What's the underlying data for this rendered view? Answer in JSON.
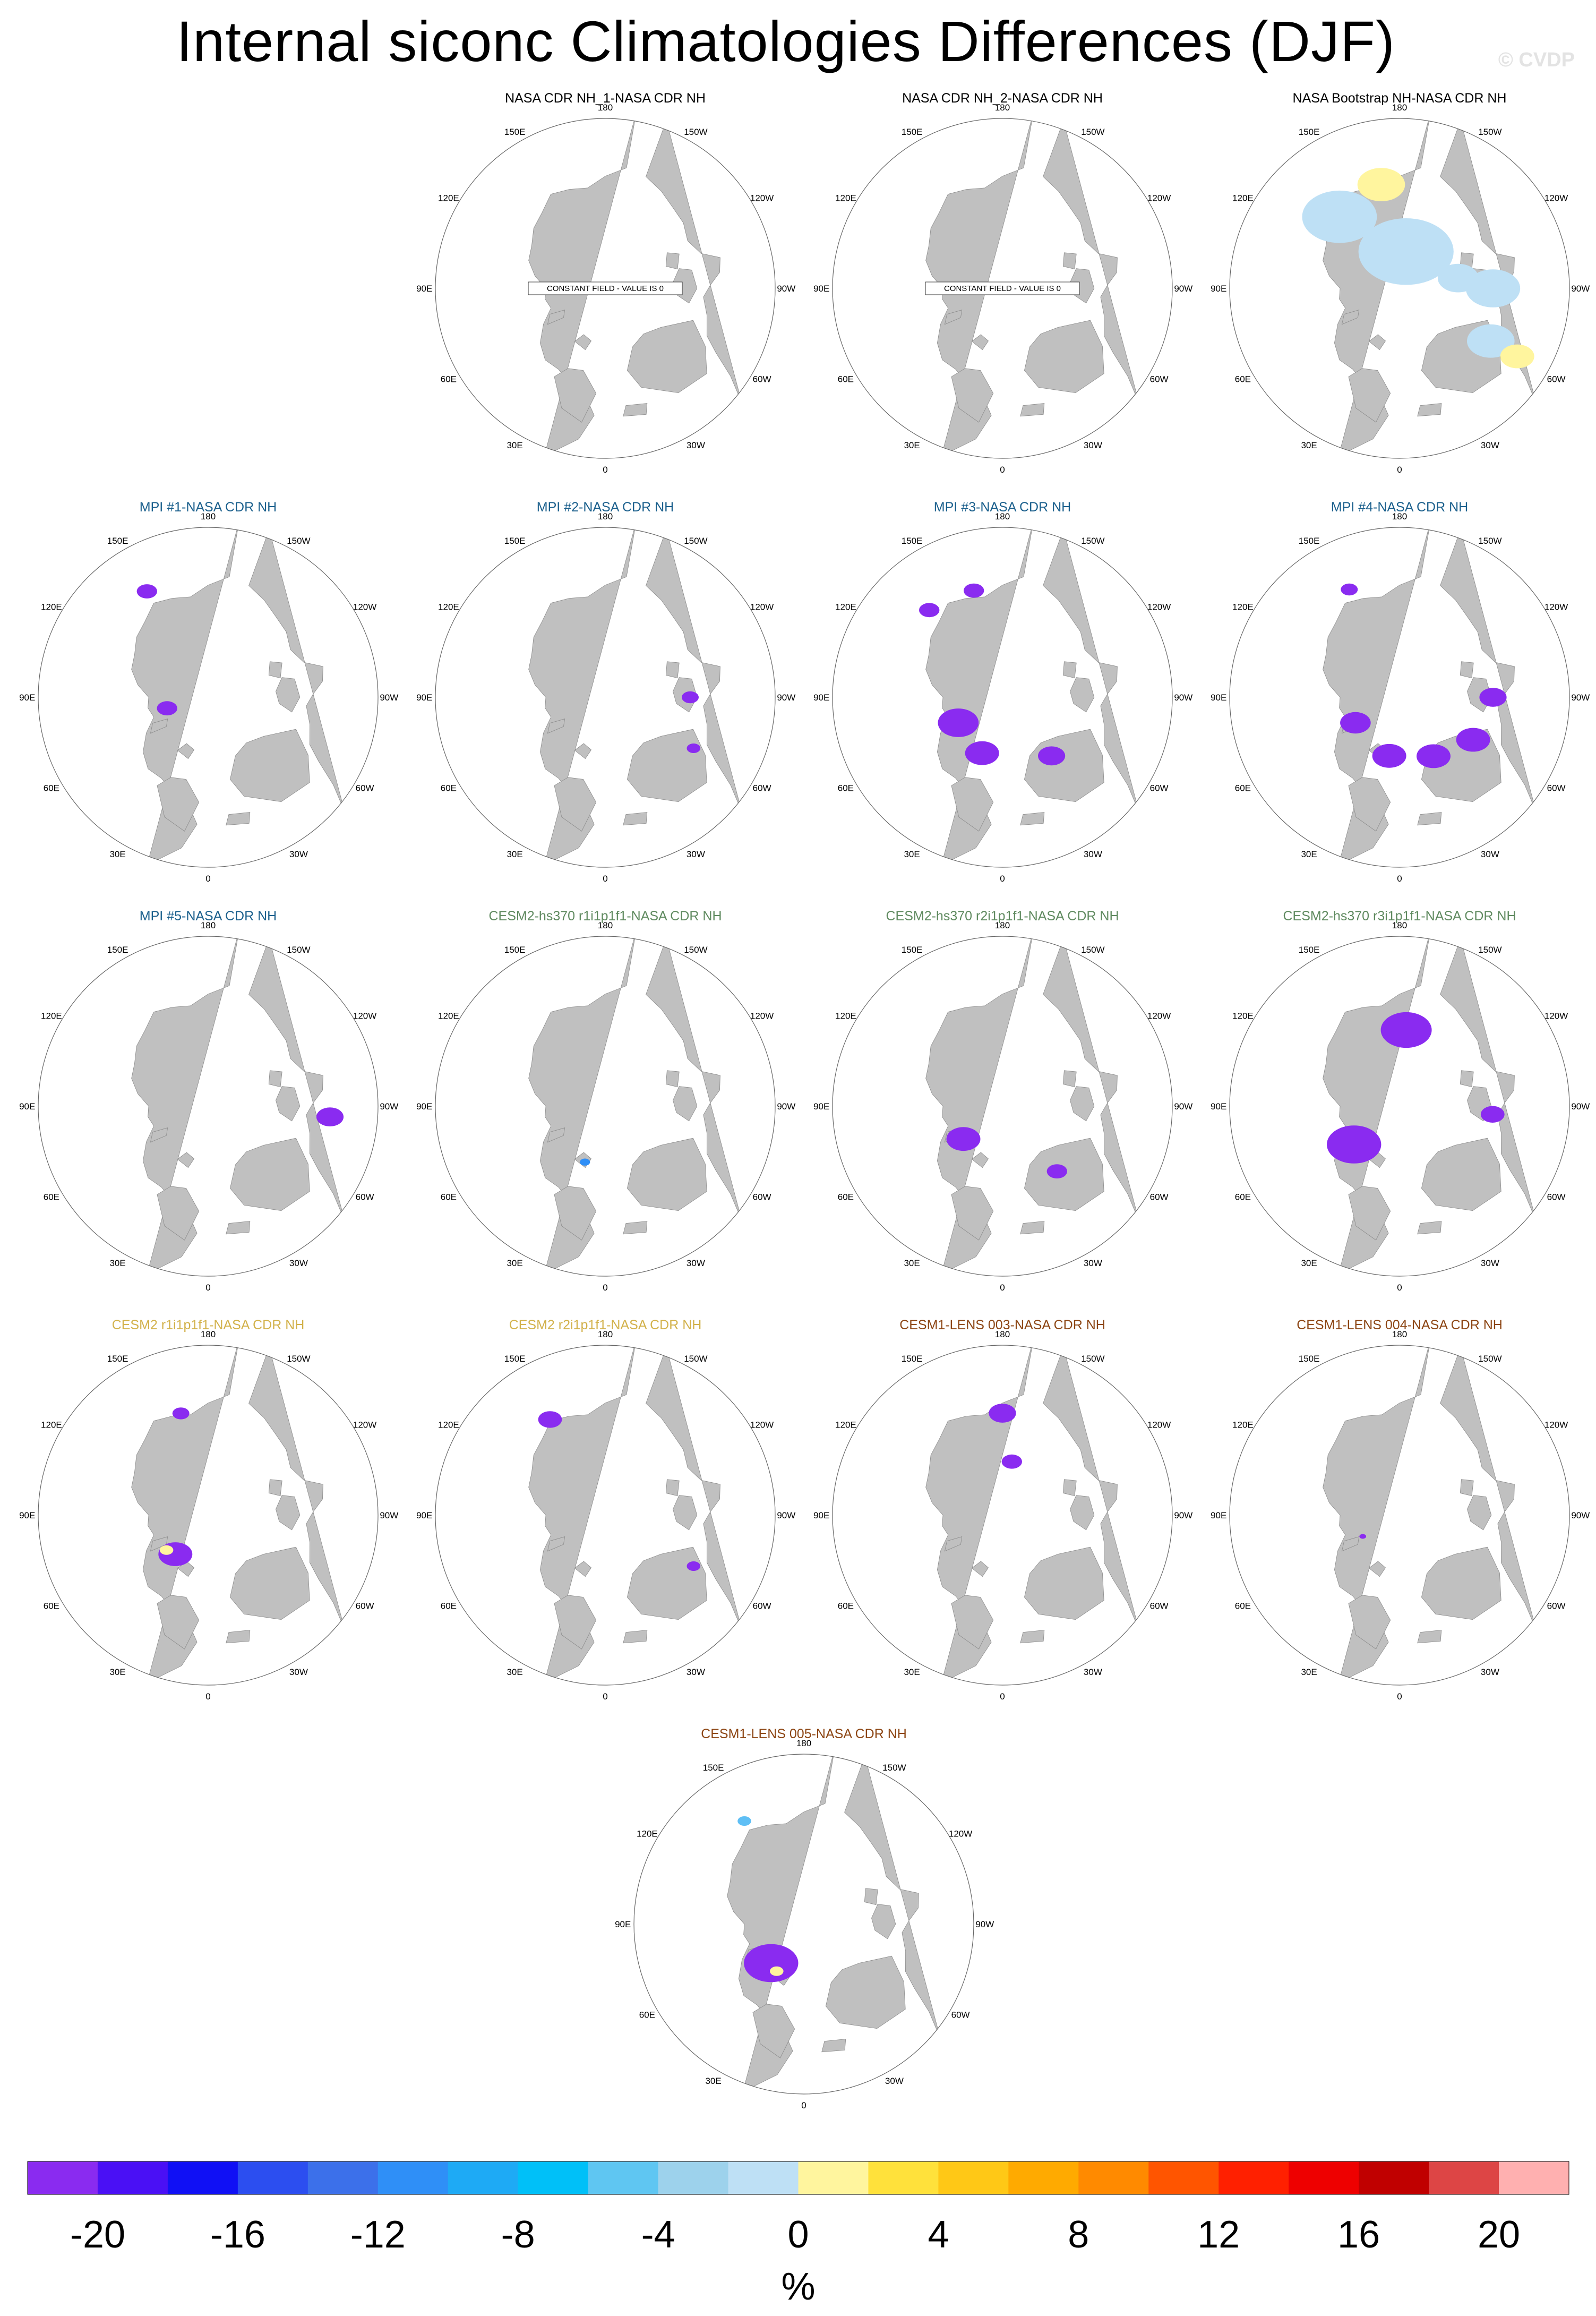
{
  "page": {
    "title": "Internal siconc Climatologies Differences (DJF)",
    "watermark": "© CVDP"
  },
  "colors": {
    "land": "#c0c0c0",
    "ocean": "#ffffff",
    "yellow_small": "#fff59e",
    "light_blue_small": "#bee0f5",
    "strong_negative": "#8a2bf0"
  },
  "lon_labels": [
    "180",
    "150E",
    "120E",
    "90E",
    "60E",
    "30E",
    "0",
    "30W",
    "60W",
    "90W",
    "120W",
    "150W"
  ],
  "panels": [
    {
      "title": "NASA CDR NH_1-NASA CDR NH",
      "title_color": "#000000",
      "constant_field": "CONSTANT FIELD - VALUE IS 0",
      "anomalies": []
    },
    {
      "title": "NASA CDR NH_2-NASA CDR NH",
      "title_color": "#000000",
      "constant_field": "CONSTANT FIELD - VALUE IS 0",
      "anomalies": []
    },
    {
      "title": "NASA Bootstrap NH-NASA CDR NH",
      "title_color": "#000000",
      "constant_field": "",
      "anomalies": [
        {
          "kind": "blob",
          "lon": 190,
          "dist": 0.22,
          "r": 0.28,
          "color": "#bee0f5"
        },
        {
          "kind": "blob",
          "lon": 140,
          "dist": 0.55,
          "r": 0.22,
          "color": "#bee0f5"
        },
        {
          "kind": "blob",
          "lon": 270,
          "dist": 0.55,
          "r": 0.16,
          "color": "#bee0f5"
        },
        {
          "kind": "blob",
          "lon": 300,
          "dist": 0.62,
          "r": 0.14,
          "color": "#bee0f5"
        },
        {
          "kind": "blob",
          "lon": 170,
          "dist": 0.62,
          "r": 0.14,
          "color": "#fff59e"
        },
        {
          "kind": "blob",
          "lon": 300,
          "dist": 0.8,
          "r": 0.1,
          "color": "#fff59e"
        },
        {
          "kind": "blob",
          "lon": 260,
          "dist": 0.35,
          "r": 0.12,
          "color": "#bee0f5"
        }
      ]
    },
    {
      "title": "MPI #1-NASA CDR NH",
      "title_color": "#1a5f8c",
      "constant_field": "",
      "anomalies": [
        {
          "kind": "blob",
          "lon": 150,
          "dist": 0.72,
          "r": 0.06,
          "color": "#8a2bf0"
        },
        {
          "kind": "blob",
          "lon": 75,
          "dist": 0.25,
          "r": 0.06,
          "color": "#8a2bf0"
        }
      ]
    },
    {
      "title": "MPI #2-NASA CDR NH",
      "title_color": "#1a5f8c",
      "constant_field": "",
      "anomalies": [
        {
          "kind": "blob",
          "lon": 270,
          "dist": 0.5,
          "r": 0.05,
          "color": "#8a2bf0"
        },
        {
          "kind": "blob",
          "lon": 300,
          "dist": 0.6,
          "r": 0.04,
          "color": "#8a2bf0"
        }
      ]
    },
    {
      "title": "MPI #3-NASA CDR NH",
      "title_color": "#1a5f8c",
      "constant_field": "",
      "anomalies": [
        {
          "kind": "blob",
          "lon": 165,
          "dist": 0.65,
          "r": 0.06,
          "color": "#8a2bf0"
        },
        {
          "kind": "blob",
          "lon": 140,
          "dist": 0.67,
          "r": 0.06,
          "color": "#8a2bf0"
        },
        {
          "kind": "blob",
          "lon": 60,
          "dist": 0.3,
          "r": 0.12,
          "color": "#8a2bf0"
        },
        {
          "kind": "blob",
          "lon": 20,
          "dist": 0.35,
          "r": 0.1,
          "color": "#8a2bf0"
        },
        {
          "kind": "blob",
          "lon": 320,
          "dist": 0.45,
          "r": 0.08,
          "color": "#8a2bf0"
        }
      ]
    },
    {
      "title": "MPI #4-NASA CDR NH",
      "title_color": "#1a5f8c",
      "constant_field": "",
      "anomalies": [
        {
          "kind": "blob",
          "lon": 155,
          "dist": 0.7,
          "r": 0.05,
          "color": "#8a2bf0"
        },
        {
          "kind": "blob",
          "lon": 60,
          "dist": 0.3,
          "r": 0.09,
          "color": "#8a2bf0"
        },
        {
          "kind": "blob",
          "lon": 10,
          "dist": 0.35,
          "r": 0.1,
          "color": "#8a2bf0"
        },
        {
          "kind": "blob",
          "lon": 330,
          "dist": 0.4,
          "r": 0.1,
          "color": "#8a2bf0"
        },
        {
          "kind": "blob",
          "lon": 300,
          "dist": 0.5,
          "r": 0.1,
          "color": "#8a2bf0"
        },
        {
          "kind": "blob",
          "lon": 270,
          "dist": 0.55,
          "r": 0.08,
          "color": "#8a2bf0"
        }
      ]
    },
    {
      "title": "MPI #5-NASA CDR NH",
      "title_color": "#1a5f8c",
      "constant_field": "",
      "anomalies": [
        {
          "kind": "blob",
          "lon": 275,
          "dist": 0.72,
          "r": 0.08,
          "color": "#8a2bf0"
        }
      ]
    },
    {
      "title": "CESM2-hs370 r1i1p1f1-NASA CDR NH",
      "title_color": "#5f8a5f",
      "constant_field": "",
      "anomalies": [
        {
          "kind": "blob",
          "lon": 20,
          "dist": 0.35,
          "r": 0.03,
          "color": "#2f8ff7"
        }
      ]
    },
    {
      "title": "CESM2-hs370 r2i1p1f1-NASA CDR NH",
      "title_color": "#5f8a5f",
      "constant_field": "",
      "anomalies": [
        {
          "kind": "blob",
          "lon": 50,
          "dist": 0.3,
          "r": 0.1,
          "color": "#8a2bf0"
        },
        {
          "kind": "blob",
          "lon": 320,
          "dist": 0.5,
          "r": 0.06,
          "color": "#8a2bf0"
        }
      ]
    },
    {
      "title": "CESM2-hs370 r3i1p1f1-NASA CDR NH",
      "title_color": "#5f8a5f",
      "constant_field": "",
      "anomalies": [
        {
          "kind": "blob",
          "lon": 185,
          "dist": 0.45,
          "r": 0.15,
          "color": "#8a2bf0"
        },
        {
          "kind": "blob",
          "lon": 50,
          "dist": 0.35,
          "r": 0.16,
          "color": "#8a2bf0"
        },
        {
          "kind": "blob",
          "lon": 275,
          "dist": 0.55,
          "r": 0.07,
          "color": "#8a2bf0"
        }
      ]
    },
    {
      "title": "CESM2 r1i1p1f1-NASA CDR NH",
      "title_color": "#d2b14a",
      "constant_field": "",
      "anomalies": [
        {
          "kind": "blob",
          "lon": 165,
          "dist": 0.62,
          "r": 0.05,
          "color": "#8a2bf0"
        },
        {
          "kind": "blob",
          "lon": 40,
          "dist": 0.3,
          "r": 0.1,
          "color": "#8a2bf0"
        },
        {
          "kind": "blob",
          "lon": 50,
          "dist": 0.32,
          "r": 0.04,
          "color": "#fff59e"
        }
      ]
    },
    {
      "title": "CESM2 r2i1p1f1-NASA CDR NH",
      "title_color": "#d2b14a",
      "constant_field": "",
      "anomalies": [
        {
          "kind": "blob",
          "lon": 150,
          "dist": 0.65,
          "r": 0.07,
          "color": "#8a2bf0"
        },
        {
          "kind": "blob",
          "lon": 300,
          "dist": 0.6,
          "r": 0.04,
          "color": "#8a2bf0"
        }
      ]
    },
    {
      "title": "CESM1-LENS 003-NASA CDR NH",
      "title_color": "#8c4513",
      "constant_field": "",
      "anomalies": [
        {
          "kind": "blob",
          "lon": 180,
          "dist": 0.6,
          "r": 0.08,
          "color": "#8a2bf0"
        },
        {
          "kind": "blob",
          "lon": 190,
          "dist": 0.32,
          "r": 0.06,
          "color": "#8a2bf0"
        }
      ]
    },
    {
      "title": "CESM1-LENS 004-NASA CDR NH",
      "title_color": "#8c4513",
      "constant_field": "",
      "anomalies": [
        {
          "kind": "blob",
          "lon": 60,
          "dist": 0.25,
          "r": 0.02,
          "color": "#8a2bf0"
        }
      ]
    },
    {
      "title": "CESM1-LENS 005-NASA CDR NH",
      "title_color": "#8c4513",
      "constant_field": "",
      "anomalies": [
        {
          "kind": "blob",
          "lon": 40,
          "dist": 0.3,
          "r": 0.16,
          "color": "#8a2bf0"
        },
        {
          "kind": "blob",
          "lon": 30,
          "dist": 0.32,
          "r": 0.04,
          "color": "#fff59e"
        },
        {
          "kind": "blob",
          "lon": 150,
          "dist": 0.7,
          "r": 0.04,
          "color": "#5fbff5"
        }
      ]
    }
  ],
  "colorbar": {
    "unit": "%",
    "tick_labels": [
      "-20",
      "-16",
      "-12",
      "-8",
      "-4",
      "0",
      "4",
      "8",
      "12",
      "16",
      "20"
    ],
    "colors": [
      "#8a2bf0",
      "#4a10f5",
      "#1010f5",
      "#2c4ef0",
      "#3c70ea",
      "#2f8ff7",
      "#1eaaf5",
      "#00c0f8",
      "#5fc6f2",
      "#9dd2ec",
      "#bee0f5",
      "#fff59e",
      "#ffe13b",
      "#ffc816",
      "#ffaa00",
      "#ff8a00",
      "#ff5500",
      "#ff2000",
      "#ee0000",
      "#c00000",
      "#dd4545",
      "#ffb0b0"
    ]
  }
}
